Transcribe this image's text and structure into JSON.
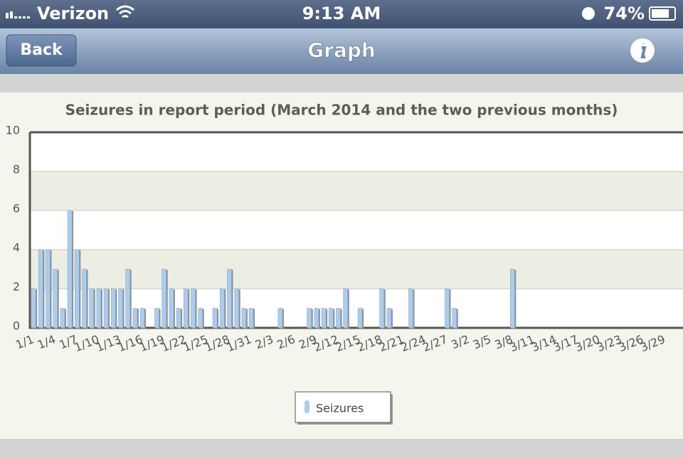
{
  "status_bar": {
    "carrier": "Verizon",
    "time": "9:13 AM",
    "battery": "74%"
  },
  "nav_bar": {
    "back": "Back",
    "title": "Graph"
  },
  "chart_data": {
    "type": "bar",
    "title": "Seizures in report period (March 2014 and the two previous months)",
    "categories": [
      "1/1",
      null,
      null,
      "1/4",
      null,
      null,
      "1/7",
      null,
      null,
      "1/10",
      null,
      null,
      "1/13",
      null,
      null,
      "1/16",
      null,
      null,
      "1/19",
      null,
      null,
      "1/22",
      null,
      null,
      "1/25",
      null,
      null,
      "1/28",
      null,
      null,
      "1/31",
      null,
      null,
      "2/3",
      null,
      null,
      "2/6",
      null,
      null,
      "2/9",
      null,
      null,
      "2/12",
      null,
      null,
      "2/15",
      null,
      null,
      "2/18",
      null,
      null,
      "2/21",
      null,
      null,
      "2/24",
      null,
      null,
      "2/27",
      null,
      null,
      "3/2",
      null,
      null,
      "3/5",
      null,
      null,
      "3/8",
      null,
      null,
      "3/11",
      null,
      null,
      "3/14",
      null,
      null,
      "3/17",
      null,
      null,
      "3/20",
      null,
      null,
      "3/23",
      null,
      null,
      "3/26",
      null,
      null,
      "3/29",
      null,
      null
    ],
    "series": [
      {
        "name": "Seizures",
        "color": "#a9cdf0",
        "values": [
          2,
          4,
          4,
          3,
          1,
          6,
          4,
          3,
          2,
          2,
          2,
          2,
          2,
          3,
          1,
          1,
          0,
          1,
          3,
          2,
          1,
          2,
          2,
          1,
          0,
          1,
          2,
          3,
          2,
          1,
          1,
          0,
          0,
          0,
          1,
          0,
          0,
          0,
          1,
          1,
          1,
          1,
          1,
          2,
          0,
          1,
          0,
          0,
          2,
          1,
          0,
          0,
          2,
          0,
          0,
          0,
          0,
          2,
          1,
          0,
          0,
          0,
          0,
          0,
          0,
          0,
          3,
          0,
          0,
          0,
          0,
          0,
          0,
          0,
          0,
          0,
          0,
          0,
          0,
          0,
          0,
          0,
          0,
          0,
          0,
          0,
          0,
          0,
          0,
          0
        ]
      }
    ],
    "ylim": [
      0,
      10
    ],
    "yticks": [
      0,
      2,
      4,
      6,
      8,
      10
    ],
    "grid": true,
    "legend": "bottom"
  }
}
